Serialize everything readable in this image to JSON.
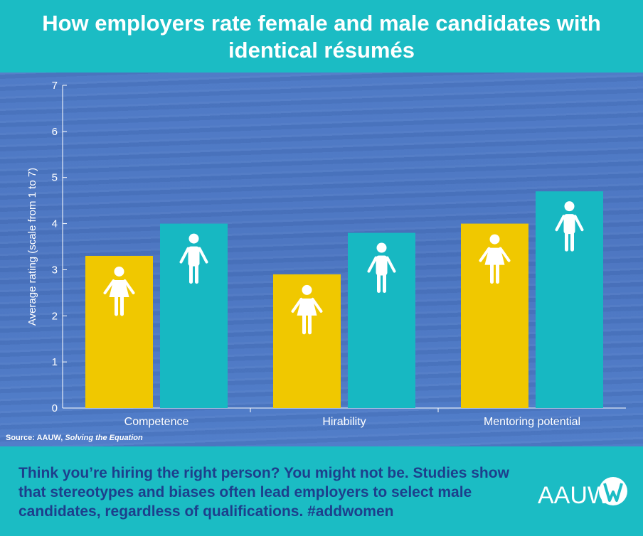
{
  "title": "How employers rate female and male candidates with identical résumés",
  "source": {
    "prefix": "Source: AAUW, ",
    "title": "Solving the Equation"
  },
  "footer_text": "Think you’re hiring the right person? You might not be. Studies show that stereotypes and biases often lead employers to select male candidates, regardless of qualifications. #addwomen",
  "logo_text": "AAUW",
  "colors": {
    "female": "#f0c800",
    "male": "#17b8c2",
    "title_bg": "#1bbcc4",
    "footer_text": "#1d3f8c"
  },
  "chart_data": {
    "type": "bar",
    "title": "How employers rate female and male candidates with identical résumés",
    "categories": [
      "Competence",
      "Hirability",
      "Mentoring potential"
    ],
    "series": [
      {
        "values": [
          3.3,
          2.9,
          4.0
        ],
        "color": "#f0c800",
        "icon": "female-icon"
      },
      {
        "values": [
          4.0,
          3.8,
          4.7
        ],
        "color": "#17b8c2",
        "icon": "male-icon"
      }
    ],
    "ylabel": "Average rating (scale from 1 to 7)",
    "xlabel": "",
    "ylim": [
      0,
      7
    ],
    "yticks": [
      "0",
      "1",
      "2",
      "3",
      "4",
      "5",
      "6",
      "7"
    ],
    "grid": false,
    "legend": "none"
  }
}
